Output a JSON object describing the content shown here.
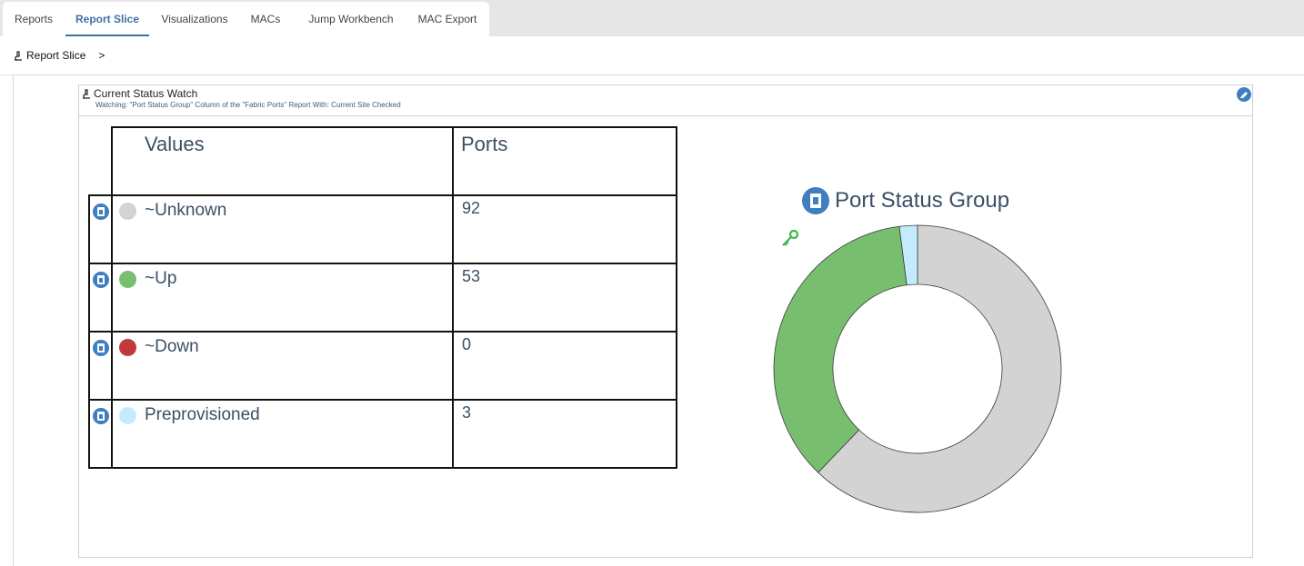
{
  "tabs": [
    {
      "label": "Reports",
      "active": false
    },
    {
      "label": "Report Slice",
      "active": true
    },
    {
      "label": "Visualizations",
      "active": false
    },
    {
      "label": "MACs",
      "active": false
    },
    {
      "label": "Jump Workbench",
      "active": false
    },
    {
      "label": "MAC Export",
      "active": false
    }
  ],
  "breadcrumb": {
    "label": "Report Slice",
    "separator": ">"
  },
  "panel": {
    "title": "Current Status Watch",
    "subtitle": "Watching: \"Port Status Group\" Column of the \"Fabric Ports\" Report With: Current Site Checked"
  },
  "table": {
    "headers": {
      "values": "Values",
      "ports": "Ports"
    },
    "rows": [
      {
        "label": "~Unknown",
        "ports": "92",
        "color": "#d3d3d3"
      },
      {
        "label": "~Up",
        "ports": "53",
        "color": "#77bf6e"
      },
      {
        "label": "~Down",
        "ports": "0",
        "color": "#c0393b"
      },
      {
        "label": "Preprovisioned",
        "ports": "3",
        "color": "#c4ebfb"
      }
    ]
  },
  "chart_data": {
    "type": "pie",
    "variant": "donut",
    "title": "Port Status Group",
    "categories": [
      "~Unknown",
      "~Up",
      "~Down",
      "Preprovisioned"
    ],
    "values": [
      92,
      53,
      0,
      3
    ],
    "colors": [
      "#d3d3d3",
      "#77bf6e",
      "#c0393b",
      "#c4ebfb"
    ]
  },
  "colors": {
    "accent": "#3f6fa8",
    "icon": "#3f7fbf",
    "key_icon": "#3cb64a"
  }
}
